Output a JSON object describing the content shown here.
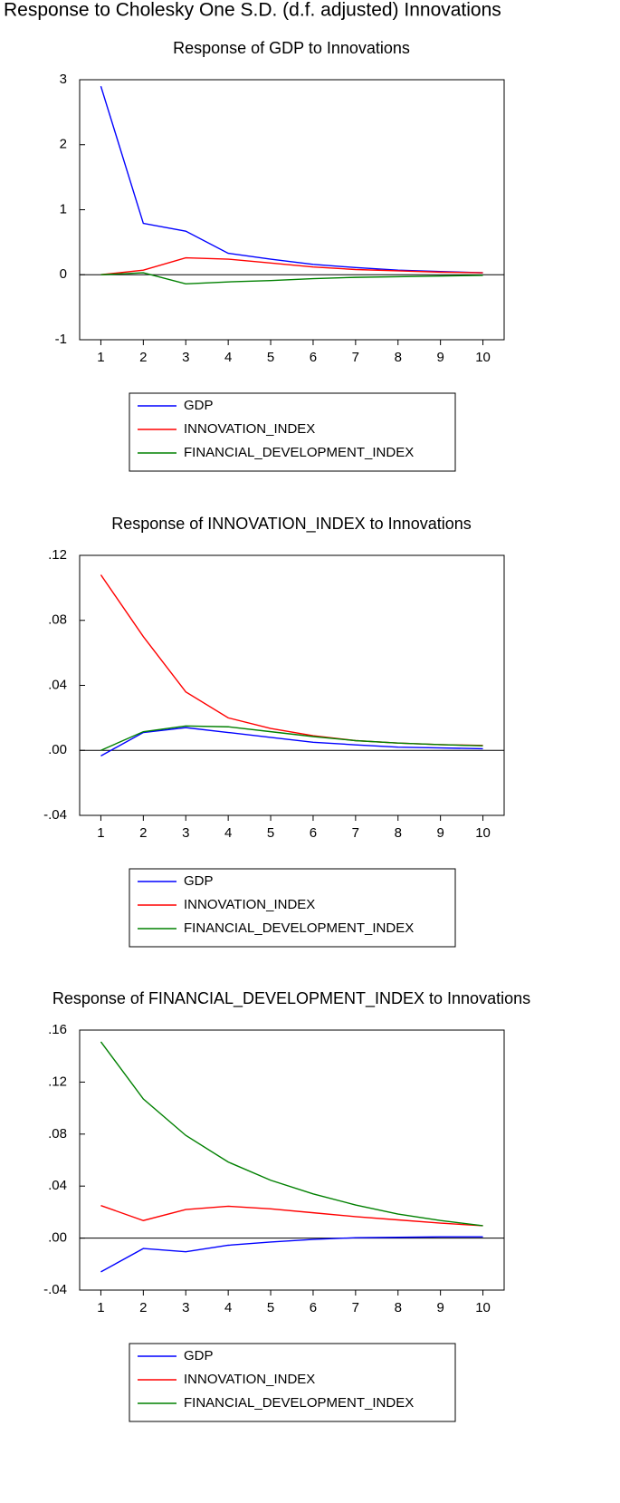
{
  "title": "Response to Cholesky One S.D. (d.f. adjusted) Innovations",
  "chart_data": [
    {
      "type": "line",
      "title": "Response of GDP to Innovations",
      "x": [
        1,
        2,
        3,
        4,
        5,
        6,
        7,
        8,
        9,
        10
      ],
      "xlim": [
        0.5,
        10.5
      ],
      "xticks": [
        1,
        2,
        3,
        4,
        5,
        6,
        7,
        8,
        9,
        10
      ],
      "ylim": [
        -1,
        3
      ],
      "yticks": [
        -1,
        0,
        1,
        2,
        3
      ],
      "series": [
        {
          "name": "GDP",
          "color": "#0000ff",
          "values": [
            2.9,
            0.79,
            0.67,
            0.33,
            0.24,
            0.16,
            0.11,
            0.07,
            0.05,
            0.03
          ]
        },
        {
          "name": "INNOVATION_INDEX",
          "color": "#ff0000",
          "values": [
            0.0,
            0.07,
            0.26,
            0.24,
            0.18,
            0.12,
            0.08,
            0.06,
            0.04,
            0.03
          ]
        },
        {
          "name": "FINANCIAL_DEVELOPMENT_INDEX",
          "color": "#008000",
          "values": [
            0.0,
            0.03,
            -0.14,
            -0.11,
            -0.09,
            -0.06,
            -0.04,
            -0.03,
            -0.02,
            -0.01
          ]
        }
      ]
    },
    {
      "type": "line",
      "title": "Response of INNOVATION_INDEX to Innovations",
      "x": [
        1,
        2,
        3,
        4,
        5,
        6,
        7,
        8,
        9,
        10
      ],
      "xlim": [
        0.5,
        10.5
      ],
      "xticks": [
        1,
        2,
        3,
        4,
        5,
        6,
        7,
        8,
        9,
        10
      ],
      "ylim": [
        -0.04,
        0.12
      ],
      "yticks": [
        {
          "value": -0.04,
          "label": "-.04"
        },
        {
          "value": 0,
          "label": ".00"
        },
        {
          "value": 0.04,
          "label": ".04"
        },
        {
          "value": 0.08,
          "label": ".08"
        },
        {
          "value": 0.12,
          "label": ".12"
        }
      ],
      "series": [
        {
          "name": "GDP",
          "color": "#0000ff",
          "values": [
            -0.0034,
            0.011,
            0.014,
            0.011,
            0.008,
            0.005,
            0.0034,
            0.002,
            0.0015,
            0.001
          ]
        },
        {
          "name": "INNOVATION_INDEX",
          "color": "#ff0000",
          "values": [
            0.108,
            0.07,
            0.036,
            0.02,
            0.0135,
            0.009,
            0.006,
            0.0045,
            0.0035,
            0.003
          ]
        },
        {
          "name": "FINANCIAL_DEVELOPMENT_INDEX",
          "color": "#008000",
          "values": [
            0.0,
            0.0115,
            0.015,
            0.0145,
            0.0115,
            0.0085,
            0.006,
            0.0045,
            0.0035,
            0.0028
          ]
        }
      ]
    },
    {
      "type": "line",
      "title": "Response of FINANCIAL_DEVELOPMENT_INDEX to Innovations",
      "x": [
        1,
        2,
        3,
        4,
        5,
        6,
        7,
        8,
        9,
        10
      ],
      "xlim": [
        0.5,
        10.5
      ],
      "xticks": [
        1,
        2,
        3,
        4,
        5,
        6,
        7,
        8,
        9,
        10
      ],
      "ylim": [
        -0.04,
        0.16
      ],
      "yticks": [
        {
          "value": -0.04,
          "label": "-.04"
        },
        {
          "value": 0,
          "label": ".00"
        },
        {
          "value": 0.04,
          "label": ".04"
        },
        {
          "value": 0.08,
          "label": ".08"
        },
        {
          "value": 0.12,
          "label": ".12"
        },
        {
          "value": 0.16,
          "label": ".16"
        }
      ],
      "series": [
        {
          "name": "GDP",
          "color": "#0000ff",
          "values": [
            -0.026,
            -0.008,
            -0.0105,
            -0.0055,
            -0.003,
            -0.001,
            0.0003,
            0.0006,
            0.001,
            0.001
          ]
        },
        {
          "name": "INNOVATION_INDEX",
          "color": "#ff0000",
          "values": [
            0.025,
            0.0135,
            0.022,
            0.0245,
            0.0225,
            0.0195,
            0.0165,
            0.014,
            0.0115,
            0.0095
          ]
        },
        {
          "name": "FINANCIAL_DEVELOPMENT_INDEX",
          "color": "#008000",
          "values": [
            0.151,
            0.107,
            0.079,
            0.0585,
            0.0445,
            0.034,
            0.0255,
            0.0185,
            0.0135,
            0.0095
          ]
        }
      ]
    }
  ]
}
